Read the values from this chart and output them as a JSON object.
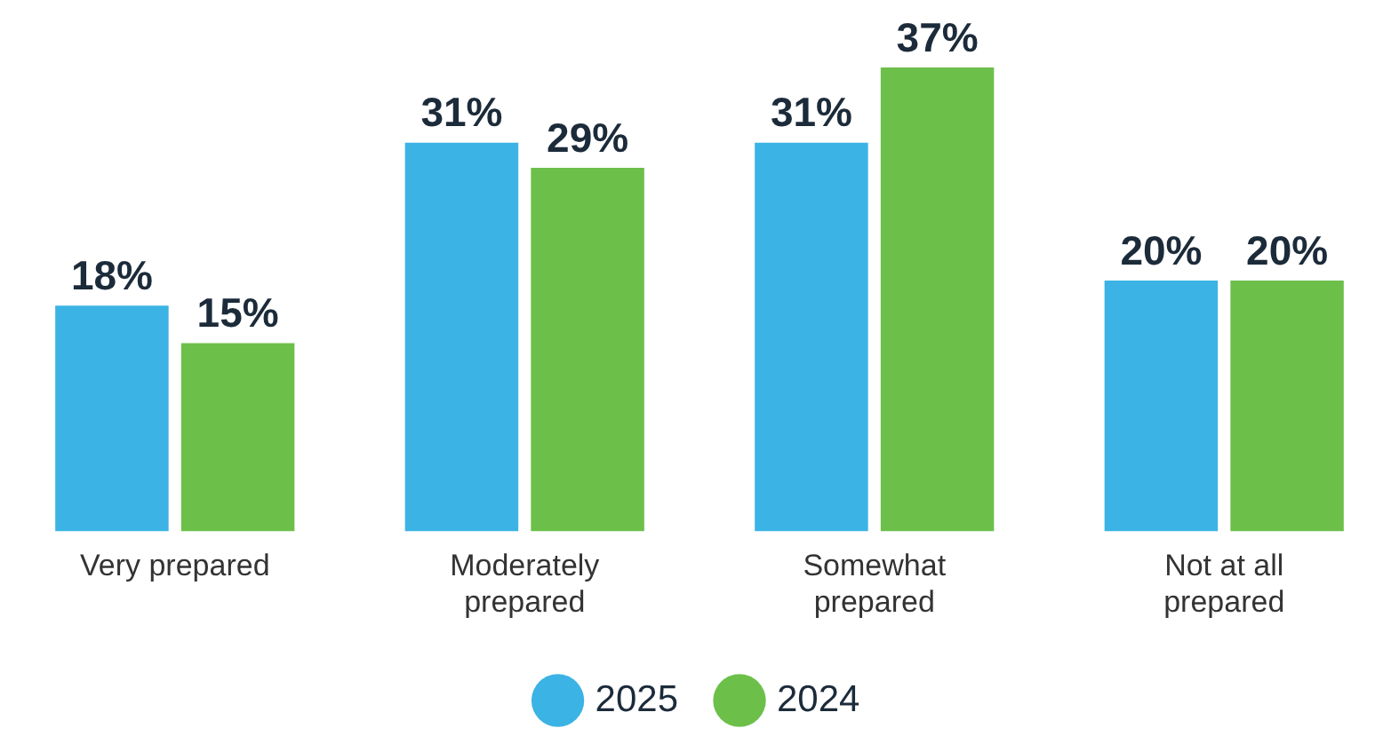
{
  "chart_data": {
    "type": "bar",
    "categories": [
      "Very prepared",
      "Moderately prepared",
      "Somewhat prepared",
      "Not at all prepared"
    ],
    "series": [
      {
        "name": "2025",
        "color": "#3bb3e4",
        "values": [
          18,
          31,
          31,
          20
        ],
        "value_labels": [
          "18%",
          "31%",
          "31%",
          "20%"
        ]
      },
      {
        "name": "2024",
        "color": "#6cc04a",
        "values": [
          15,
          29,
          37,
          20
        ],
        "value_labels": [
          "15%",
          "29%",
          "37%",
          "20%"
        ]
      }
    ],
    "legend": "bottom",
    "grid": false
  }
}
